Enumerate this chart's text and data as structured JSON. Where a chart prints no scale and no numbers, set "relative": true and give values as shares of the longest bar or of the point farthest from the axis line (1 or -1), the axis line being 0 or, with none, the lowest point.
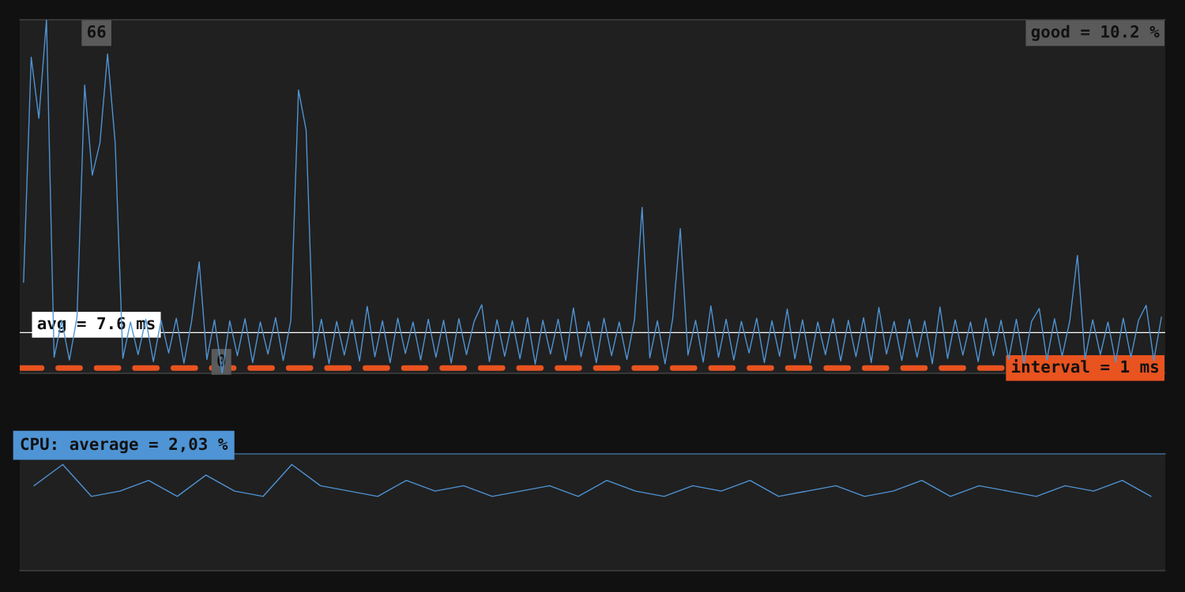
{
  "chart_data": [
    {
      "type": "line",
      "color": "#4f94d4",
      "tick_labels": false,
      "ylim": [
        0,
        66
      ],
      "categories": [
        null,
        null,
        null,
        null,
        null,
        null,
        null,
        null,
        null,
        null,
        null,
        null,
        null,
        null,
        null,
        null,
        null,
        null,
        null,
        null,
        null,
        null,
        null,
        null,
        null,
        null,
        null,
        null,
        null,
        null,
        null,
        null,
        null,
        null,
        null,
        null,
        null,
        null,
        null,
        null,
        null,
        null,
        null,
        null,
        null,
        null,
        null,
        null,
        null,
        null,
        null,
        null,
        null,
        null,
        null,
        null,
        null,
        null,
        null,
        null,
        null,
        null,
        null,
        null,
        null,
        null,
        null,
        null,
        null,
        null,
        null,
        null,
        null,
        null,
        null,
        null,
        null,
        null,
        null,
        null,
        null,
        null,
        null,
        null,
        null,
        null,
        null,
        null,
        null,
        null,
        null,
        null,
        null,
        null,
        null,
        null,
        null,
        null,
        null,
        null,
        null,
        null,
        null,
        null,
        null,
        null,
        null,
        null,
        null,
        null,
        null,
        null,
        null,
        null,
        null,
        null,
        null,
        null,
        null,
        null,
        null,
        null,
        null,
        null,
        null,
        null,
        null,
        null,
        null,
        null,
        null,
        null,
        null,
        null,
        null,
        null,
        null,
        null,
        null,
        null,
        null,
        null,
        null,
        null,
        null,
        null,
        null,
        null,
        null,
        null
      ],
      "values": [
        17,
        59,
        47.6,
        66,
        3.0,
        9.8,
        2.5,
        10.5,
        53.8,
        37,
        43,
        59.6,
        43,
        2.8,
        9.6,
        3.5,
        10.1,
        2.2,
        9.9,
        3.8,
        10.3,
        1.9,
        9.7,
        20.8,
        2.6,
        10.0,
        0,
        9.8,
        3.3,
        10.2,
        2.0,
        9.6,
        3.6,
        10.4,
        2.4,
        9.9,
        52.9,
        45.4,
        2.9,
        10.1,
        1.8,
        9.7,
        3.4,
        10.0,
        2.3,
        12.5,
        3.1,
        9.8,
        2.0,
        10.3,
        3.7,
        9.6,
        2.5,
        10.1,
        3.0,
        9.9,
        1.9,
        10.2,
        3.5,
        9.7,
        12.8,
        2.2,
        10.0,
        3.2,
        9.8,
        2.7,
        10.4,
        1.7,
        9.9,
        3.6,
        10.1,
        2.4,
        12.2,
        3.1,
        9.7,
        2.0,
        10.3,
        3.3,
        9.6,
        2.6,
        10.0,
        31,
        2.9,
        9.8,
        1.8,
        10.2,
        27,
        3.4,
        9.9,
        2.1,
        12.6,
        3.0,
        10.1,
        2.5,
        9.7,
        3.8,
        10.3,
        2.0,
        9.8,
        3.2,
        12.0,
        2.7,
        10.0,
        1.9,
        9.6,
        3.5,
        10.2,
        2.3,
        9.9,
        3.1,
        10.4,
        2.0,
        12.3,
        3.6,
        9.7,
        2.4,
        10.1,
        3.0,
        9.8,
        1.8,
        12.4,
        2.8,
        10.0,
        3.4,
        9.6,
        2.2,
        10.3,
        3.3,
        9.9,
        2.6,
        10.1,
        1.9,
        9.7,
        12.1,
        2.5,
        10.2,
        3.2,
        9.8,
        22,
        2.7,
        10.0,
        3.5,
        9.6,
        2.1,
        10.3,
        3.0,
        9.9,
        12.7,
        2.4,
        10.5
      ],
      "ref_lines": [
        {
          "axis": "y",
          "value": 7.6,
          "label": "avg = 7.6 ms",
          "color": "#ffffff",
          "line_style": "solid"
        },
        {
          "axis": "y",
          "value": 1,
          "label": "interval = 1 ms",
          "color": "#e8531f",
          "line_style": "dashed"
        }
      ],
      "annotations": [
        "good = 10.2 %",
        "66",
        "0"
      ]
    },
    {
      "type": "line",
      "title": "CPU: average = 2,03 %",
      "color": "#4f94d4",
      "relative": true,
      "tick_labels": false,
      "categories": [
        null,
        null,
        null,
        null,
        null,
        null,
        null,
        null,
        null,
        null,
        null,
        null,
        null,
        null,
        null,
        null,
        null,
        null,
        null,
        null,
        null,
        null,
        null,
        null,
        null,
        null,
        null,
        null,
        null,
        null,
        null,
        null,
        null,
        null,
        null,
        null,
        null,
        null,
        null,
        null
      ],
      "values": [
        0.8,
        1,
        0.7,
        0.75,
        0.85,
        0.7,
        0.9,
        0.75,
        0.7,
        1,
        0.8,
        0.75,
        0.7,
        0.85,
        0.75,
        0.8,
        0.7,
        0.75,
        0.8,
        0.7,
        0.85,
        0.75,
        0.7,
        0.8,
        0.75,
        0.85,
        0.7,
        0.75,
        0.8,
        0.7,
        0.75,
        0.85,
        0.7,
        0.8,
        0.75,
        0.7,
        0.8,
        0.75,
        0.85,
        0.7
      ]
    }
  ]
}
